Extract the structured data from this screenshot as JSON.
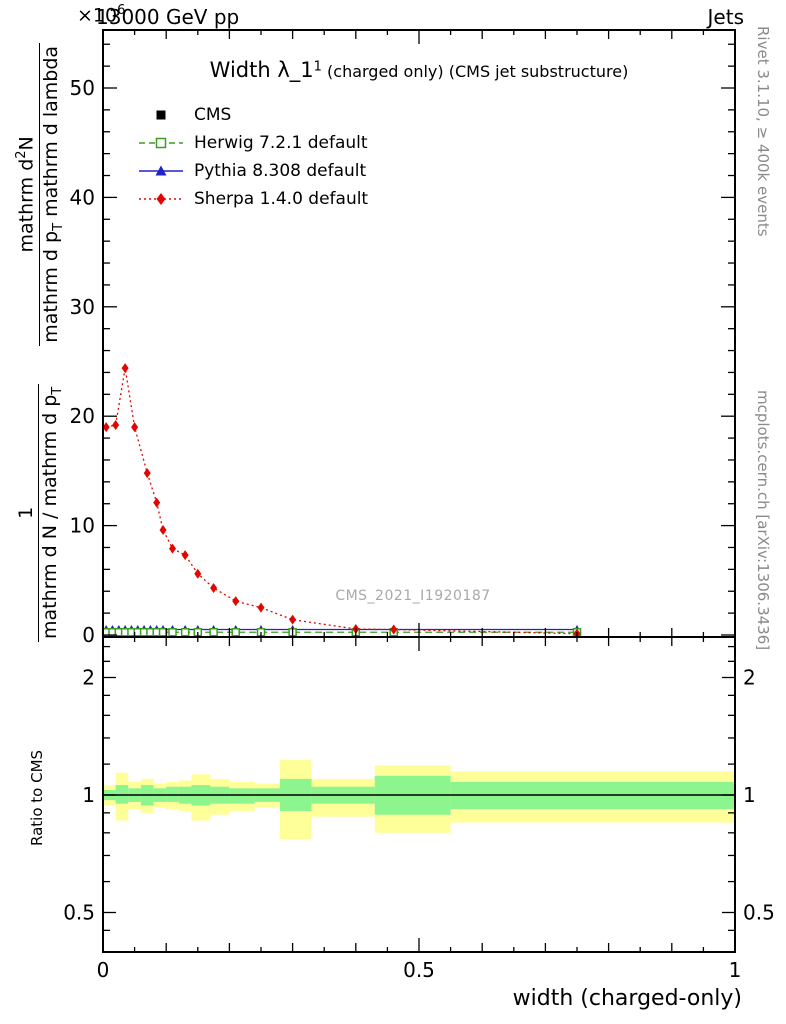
{
  "header": {
    "energy": "13000 GeV pp",
    "topic": "Jets",
    "multiplier_base": "×10",
    "multiplier_exp": "6"
  },
  "title": {
    "main": "Width λ_1",
    "sup": "1",
    "paren": " (charged only) (CMS jet substructure)"
  },
  "watermark": "CMS_2021_I1920187",
  "side_notes": {
    "right_top": "Rivet 3.1.10, ≥ 400k events",
    "right_bottom": "mcplots.cern.ch [arXiv:1306.3436]"
  },
  "axis_labels": {
    "x": "width (charged-only)",
    "ratio_y": "Ratio to CMS",
    "y_frac1_num": "1",
    "y_frac1_den_main": "mathrm d N / mathrm d p",
    "y_frac1_den_sub": "T",
    "y_frac2_num_pre": "mathrm d",
    "y_frac2_num_sup": "2",
    "y_frac2_num_post": "N",
    "y_frac2_den_pre": "mathrm d p",
    "y_frac2_den_sub": "T",
    "y_frac2_den_post": " mathrm d lambda"
  },
  "legend": [
    {
      "label": "CMS",
      "color": "#000000",
      "marker": "filled-square",
      "line": "none"
    },
    {
      "label": "Herwig 7.2.1 default",
      "color": "#3b9e23",
      "marker": "open-square",
      "line": "dashed"
    },
    {
      "label": "Pythia 8.308 default",
      "color": "#2222cc",
      "marker": "filled-triangle",
      "line": "solid"
    },
    {
      "label": "Sherpa 1.4.0 default",
      "color": "#e10600",
      "marker": "filled-diamond",
      "line": "dotted"
    }
  ],
  "chart_data": {
    "type": "line",
    "title": "Width λ_1^1 (charged only) (CMS jet substructure)",
    "xlabel": "width (charged-only)",
    "ylabel": "1 / (dN/dp_T) · d²N/(dp_T dλ)  [×10^6]",
    "xlim": [
      0,
      1
    ],
    "xticks": [
      {
        "v": 0,
        "label": "0"
      },
      {
        "v": 0.5,
        "label": "0.5"
      },
      {
        "v": 1,
        "label": "1"
      }
    ],
    "x_minor_step": 0.05,
    "main_panel": {
      "ylim": [
        0,
        55.5
      ],
      "yticks": [
        0,
        10,
        20,
        30,
        40,
        50
      ],
      "y_minor_step": 2,
      "unit_multiplier": "1e6",
      "series": [
        {
          "name": "Pythia 8.308 default",
          "color": "#2222cc",
          "marker": "filled-triangle",
          "line": "solid",
          "x": [
            0.005,
            0.015,
            0.025,
            0.035,
            0.045,
            0.055,
            0.065,
            0.075,
            0.085,
            0.095,
            0.11,
            0.13,
            0.15,
            0.175,
            0.21,
            0.25,
            0.3,
            0.4,
            0.46,
            0.75
          ],
          "y": [
            0.5,
            0.5,
            0.5,
            0.5,
            0.5,
            0.5,
            0.5,
            0.5,
            0.5,
            0.5,
            0.5,
            0.5,
            0.5,
            0.5,
            0.5,
            0.5,
            0.5,
            0.5,
            0.5,
            0.5
          ]
        },
        {
          "name": "CMS",
          "color": "#000000",
          "marker": "filled-square",
          "line": "none",
          "x": [
            0.005,
            0.015,
            0.025,
            0.035,
            0.045,
            0.055,
            0.065,
            0.075,
            0.085,
            0.095,
            0.11,
            0.13,
            0.15,
            0.175,
            0.21,
            0.25,
            0.3,
            0.4,
            0.46,
            0.75
          ],
          "y": [
            0.25,
            0.25,
            0.25,
            0.25,
            0.25,
            0.25,
            0.25,
            0.25,
            0.25,
            0.25,
            0.25,
            0.25,
            0.25,
            0.25,
            0.25,
            0.25,
            0.25,
            0.25,
            0.25,
            0.25
          ]
        },
        {
          "name": "Herwig 7.2.1 default",
          "color": "#3b9e23",
          "marker": "open-square",
          "line": "dashed",
          "x": [
            0.005,
            0.015,
            0.025,
            0.035,
            0.045,
            0.055,
            0.065,
            0.075,
            0.085,
            0.095,
            0.11,
            0.13,
            0.15,
            0.175,
            0.21,
            0.25,
            0.3,
            0.4,
            0.46,
            0.75
          ],
          "y": [
            0.25,
            0.25,
            0.25,
            0.25,
            0.25,
            0.25,
            0.25,
            0.25,
            0.25,
            0.25,
            0.25,
            0.25,
            0.25,
            0.25,
            0.25,
            0.25,
            0.25,
            0.25,
            0.25,
            0.25
          ]
        },
        {
          "name": "Sherpa 1.4.0 default",
          "color": "#e10600",
          "marker": "filled-diamond",
          "line": "dotted",
          "x": [
            0.005,
            0.02,
            0.035,
            0.05,
            0.07,
            0.085,
            0.095,
            0.11,
            0.13,
            0.15,
            0.175,
            0.21,
            0.25,
            0.3,
            0.4,
            0.46,
            0.75
          ],
          "y": [
            19.0,
            19.2,
            24.4,
            19.0,
            14.8,
            12.1,
            9.6,
            7.9,
            7.3,
            5.6,
            4.3,
            3.1,
            2.5,
            1.4,
            0.55,
            0.5,
            0.12
          ]
        }
      ]
    },
    "ratio_panel": {
      "ylabel": "Ratio to CMS",
      "scale": "log",
      "ylim": [
        0.4,
        2.55
      ],
      "baseline": 1,
      "yticks": [
        {
          "v": 0.5,
          "label": "0.5"
        },
        {
          "v": 1,
          "label": "1"
        },
        {
          "v": 2,
          "label": "2"
        }
      ],
      "y_minor": [
        0.45,
        0.6,
        0.7,
        0.8,
        0.9,
        1.2,
        1.4,
        1.6,
        1.8,
        2.2,
        2.4
      ],
      "band_colors": {
        "outer": "#ffff99",
        "inner": "#8df58d"
      },
      "bands": [
        {
          "x": [
            0.0,
            0.02
          ],
          "yellow": [
            0.94,
            1.06
          ],
          "green": [
            0.97,
            1.03
          ]
        },
        {
          "x": [
            0.02,
            0.04
          ],
          "yellow": [
            0.86,
            1.14
          ],
          "green": [
            0.95,
            1.06
          ]
        },
        {
          "x": [
            0.04,
            0.06
          ],
          "yellow": [
            0.92,
            1.08
          ],
          "green": [
            0.96,
            1.04
          ]
        },
        {
          "x": [
            0.06,
            0.08
          ],
          "yellow": [
            0.9,
            1.1
          ],
          "green": [
            0.94,
            1.06
          ]
        },
        {
          "x": [
            0.08,
            0.1
          ],
          "yellow": [
            0.93,
            1.07
          ],
          "green": [
            0.96,
            1.04
          ]
        },
        {
          "x": [
            0.1,
            0.12
          ],
          "yellow": [
            0.92,
            1.08
          ],
          "green": [
            0.96,
            1.05
          ]
        },
        {
          "x": [
            0.12,
            0.14
          ],
          "yellow": [
            0.91,
            1.09
          ],
          "green": [
            0.95,
            1.05
          ]
        },
        {
          "x": [
            0.14,
            0.17
          ],
          "yellow": [
            0.86,
            1.13
          ],
          "green": [
            0.94,
            1.06
          ]
        },
        {
          "x": [
            0.17,
            0.2
          ],
          "yellow": [
            0.89,
            1.1
          ],
          "green": [
            0.95,
            1.05
          ]
        },
        {
          "x": [
            0.2,
            0.24
          ],
          "yellow": [
            0.91,
            1.08
          ],
          "green": [
            0.95,
            1.04
          ]
        },
        {
          "x": [
            0.24,
            0.28
          ],
          "yellow": [
            0.93,
            1.07
          ],
          "green": [
            0.96,
            1.04
          ]
        },
        {
          "x": [
            0.28,
            0.33
          ],
          "yellow": [
            0.77,
            1.23
          ],
          "green": [
            0.91,
            1.1
          ]
        },
        {
          "x": [
            0.33,
            0.43
          ],
          "yellow": [
            0.88,
            1.1
          ],
          "green": [
            0.95,
            1.05
          ]
        },
        {
          "x": [
            0.43,
            0.55
          ],
          "yellow": [
            0.8,
            1.19
          ],
          "green": [
            0.89,
            1.12
          ]
        },
        {
          "x": [
            0.55,
            1.0
          ],
          "yellow": [
            0.85,
            1.15
          ],
          "green": [
            0.92,
            1.08
          ]
        }
      ]
    }
  }
}
